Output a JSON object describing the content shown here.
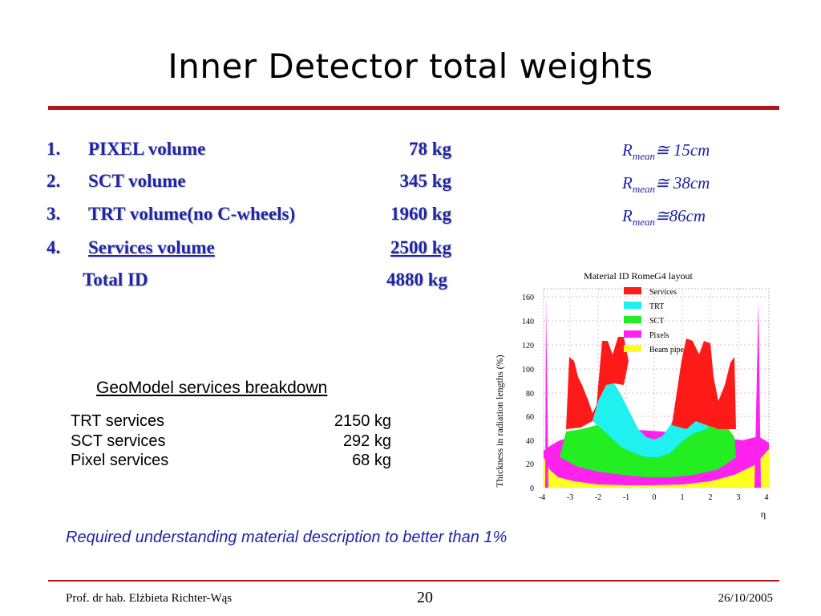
{
  "title": "Inner Detector total weights",
  "volumes": [
    {
      "num": "1.",
      "label": "PIXEL volume",
      "weight": "78 kg"
    },
    {
      "num": "2.",
      "label": "SCT volume",
      "weight": "345 kg"
    },
    {
      "num": "3.",
      "label": "TRT volume(no C-wheels)",
      "weight": "1960 kg"
    },
    {
      "num": "4.",
      "label": "Services volume",
      "weight": "2500 kg"
    }
  ],
  "total": {
    "label": "Total ID",
    "weight": "4880 kg"
  },
  "rmean": [
    {
      "r": "R",
      "sub": "mean",
      "value": "≅ 15cm"
    },
    {
      "r": "R",
      "sub": "mean",
      "value": "≅ 38cm"
    },
    {
      "r": "R",
      "sub": "mean",
      "value": "≅86cm"
    }
  ],
  "geomodel": {
    "title": "GeoModel services breakdown",
    "rows": [
      {
        "label": "TRT services",
        "weight": "2150 kg"
      },
      {
        "label": "SCT services",
        "weight": "292 kg"
      },
      {
        "label": "Pixel services",
        "weight": "68 kg"
      }
    ]
  },
  "note": "Required understanding material description to better than 1%",
  "footer": {
    "author": "Prof. dr hab. Elżbieta Richter-Wąs",
    "page": "20",
    "date": "26/10/2005"
  },
  "figure": {
    "title": "Material ID RomeG4 layout",
    "ylabel": "Thickness in radiation lengths (%)",
    "xlabel": "η",
    "yticks": [
      "0",
      "20",
      "40",
      "60",
      "80",
      "100",
      "120",
      "140",
      "160"
    ],
    "xticks": [
      "-4",
      "-3",
      "-2",
      "-1",
      "0",
      "1",
      "2",
      "3",
      "4"
    ],
    "legend": [
      {
        "name": "Services",
        "color": "#ff1a1a"
      },
      {
        "name": "TRT",
        "color": "#1ff0f0"
      },
      {
        "name": "SCT",
        "color": "#22ee22"
      },
      {
        "name": "Pixels",
        "color": "#ff22ee"
      },
      {
        "name": "Beam pipe",
        "color": "#ffff22"
      }
    ]
  }
}
